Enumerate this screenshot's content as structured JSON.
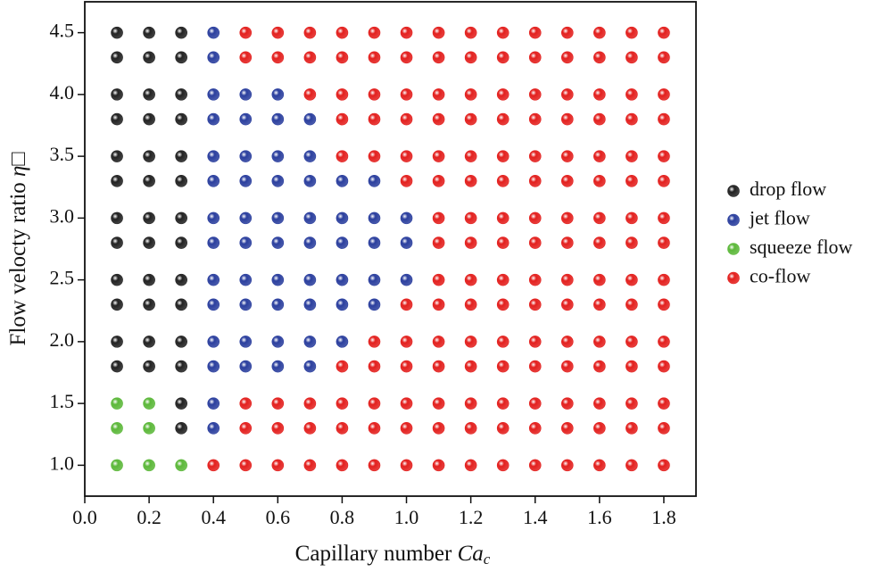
{
  "chart_data": {
    "type": "scatter",
    "xlabel": {
      "text": "Capillary number ",
      "symbol": "Ca",
      "subscript": "c"
    },
    "ylabel": {
      "text": "Flow velocty ratio ",
      "symbol": "η",
      "suffix": "□"
    },
    "xlim": [
      0,
      1.9
    ],
    "xticks": [
      {
        "value": 0,
        "label": "0.0"
      },
      0.2,
      0.4,
      0.6,
      0.8,
      {
        "value": 1,
        "label": "1.0"
      },
      1.2,
      1.4,
      1.6,
      1.8
    ],
    "ylim": [
      0.75,
      4.75
    ],
    "yticks": [
      {
        "value": 1,
        "label": "1.0"
      },
      1.5,
      {
        "value": 2,
        "label": "2.0"
      },
      2.5,
      {
        "value": 3,
        "label": "3.0"
      },
      3.5,
      {
        "value": 4,
        "label": "4.0"
      },
      4.5
    ],
    "legend": "right",
    "series": [
      {
        "name": "drop flow",
        "color": "#222222",
        "x": [
          0.1,
          0.1,
          0.1,
          0.1,
          0.1,
          0.1,
          0.1,
          0.1,
          0.1,
          0.1,
          0.1,
          0.1,
          0.2,
          0.2,
          0.2,
          0.2,
          0.2,
          0.2,
          0.2,
          0.2,
          0.2,
          0.2,
          0.2,
          0.2,
          0.3,
          0.3,
          0.3,
          0.3,
          0.3,
          0.3,
          0.3,
          0.3,
          0.3,
          0.3,
          0.3,
          0.3,
          0.3,
          0.3
        ],
        "values": [
          1.8,
          2.0,
          2.3,
          2.5,
          2.8,
          3.0,
          3.3,
          3.5,
          3.8,
          4.0,
          4.3,
          4.5,
          1.8,
          2.0,
          2.3,
          2.5,
          2.8,
          3.0,
          3.3,
          3.5,
          3.8,
          4.0,
          4.3,
          4.5,
          1.3,
          1.5,
          1.8,
          2.0,
          2.3,
          2.5,
          2.8,
          3.0,
          3.3,
          3.5,
          3.8,
          4.0,
          4.3,
          4.5
        ]
      },
      {
        "name": "jet flow",
        "color": "#2b3f9e",
        "x": [
          0.4,
          0.4,
          0.4,
          0.5,
          0.6,
          0.7,
          0.4,
          0.5,
          0.6,
          0.7,
          0.8,
          0.4,
          0.5,
          0.6,
          0.7,
          0.8,
          0.9,
          0.4,
          0.5,
          0.6,
          0.7,
          0.8,
          0.9,
          1.0,
          0.4,
          0.5,
          0.6,
          0.7,
          0.8,
          0.9,
          1.0,
          0.4,
          0.5,
          0.6,
          0.7,
          0.8,
          0.9,
          1.0,
          0.4,
          0.5,
          0.6,
          0.7,
          0.8,
          0.9,
          0.4,
          0.5,
          0.6,
          0.7,
          0.4,
          0.5,
          0.6,
          0.7,
          0.4,
          0.5,
          0.6,
          0.4,
          0.4
        ],
        "values": [
          1.3,
          1.5,
          1.8,
          1.8,
          1.8,
          1.8,
          2.0,
          2.0,
          2.0,
          2.0,
          2.0,
          2.3,
          2.3,
          2.3,
          2.3,
          2.3,
          2.3,
          2.5,
          2.5,
          2.5,
          2.5,
          2.5,
          2.5,
          2.5,
          2.8,
          2.8,
          2.8,
          2.8,
          2.8,
          2.8,
          2.8,
          3.0,
          3.0,
          3.0,
          3.0,
          3.0,
          3.0,
          3.0,
          3.3,
          3.3,
          3.3,
          3.3,
          3.3,
          3.3,
          3.5,
          3.5,
          3.5,
          3.5,
          3.8,
          3.8,
          3.8,
          3.8,
          4.0,
          4.0,
          4.0,
          4.3,
          4.5
        ]
      },
      {
        "name": "squeeze flow",
        "color": "#5cb83a",
        "x": [
          0.1,
          0.1,
          0.1,
          0.2,
          0.2,
          0.2,
          0.3
        ],
        "values": [
          1.0,
          1.3,
          1.5,
          1.0,
          1.3,
          1.5,
          1.0
        ]
      },
      {
        "name": "co-flow",
        "color": "#e3201e",
        "x": [
          0.4,
          0.5,
          0.6,
          0.7,
          0.8,
          0.9,
          1.0,
          1.1,
          1.2,
          1.3,
          1.4,
          1.5,
          1.6,
          1.7,
          1.8,
          0.5,
          0.6,
          0.7,
          0.8,
          0.9,
          1.0,
          1.1,
          1.2,
          1.3,
          1.4,
          1.5,
          1.6,
          1.7,
          1.8,
          0.5,
          0.6,
          0.7,
          0.8,
          0.9,
          1.0,
          1.1,
          1.2,
          1.3,
          1.4,
          1.5,
          1.6,
          1.7,
          1.8,
          0.8,
          0.9,
          1.0,
          1.1,
          1.2,
          1.3,
          1.4,
          1.5,
          1.6,
          1.7,
          1.8,
          0.9,
          1.0,
          1.1,
          1.2,
          1.3,
          1.4,
          1.5,
          1.6,
          1.7,
          1.8,
          1.0,
          1.1,
          1.2,
          1.3,
          1.4,
          1.5,
          1.6,
          1.7,
          1.8,
          1.1,
          1.2,
          1.3,
          1.4,
          1.5,
          1.6,
          1.7,
          1.8,
          1.1,
          1.2,
          1.3,
          1.4,
          1.5,
          1.6,
          1.7,
          1.8,
          1.1,
          1.2,
          1.3,
          1.4,
          1.5,
          1.6,
          1.7,
          1.8,
          1.0,
          1.1,
          1.2,
          1.3,
          1.4,
          1.5,
          1.6,
          1.7,
          1.8,
          0.8,
          0.9,
          1.0,
          1.1,
          1.2,
          1.3,
          1.4,
          1.5,
          1.6,
          1.7,
          1.8,
          0.8,
          0.9,
          1.0,
          1.1,
          1.2,
          1.3,
          1.4,
          1.5,
          1.6,
          1.7,
          1.8,
          0.7,
          0.8,
          0.9,
          1.0,
          1.1,
          1.2,
          1.3,
          1.4,
          1.5,
          1.6,
          1.7,
          1.8,
          0.5,
          0.6,
          0.7,
          0.8,
          0.9,
          1.0,
          1.1,
          1.2,
          1.3,
          1.4,
          1.5,
          1.6,
          1.7,
          1.8,
          0.5,
          0.6,
          0.7,
          0.8,
          0.9,
          1.0,
          1.1,
          1.2,
          1.3,
          1.4,
          1.5,
          1.6,
          1.7,
          1.8
        ],
        "values": [
          1.0,
          1.0,
          1.0,
          1.0,
          1.0,
          1.0,
          1.0,
          1.0,
          1.0,
          1.0,
          1.0,
          1.0,
          1.0,
          1.0,
          1.0,
          1.3,
          1.3,
          1.3,
          1.3,
          1.3,
          1.3,
          1.3,
          1.3,
          1.3,
          1.3,
          1.3,
          1.3,
          1.3,
          1.3,
          1.5,
          1.5,
          1.5,
          1.5,
          1.5,
          1.5,
          1.5,
          1.5,
          1.5,
          1.5,
          1.5,
          1.5,
          1.5,
          1.5,
          1.8,
          1.8,
          1.8,
          1.8,
          1.8,
          1.8,
          1.8,
          1.8,
          1.8,
          1.8,
          1.8,
          2.0,
          2.0,
          2.0,
          2.0,
          2.0,
          2.0,
          2.0,
          2.0,
          2.0,
          2.0,
          2.3,
          2.3,
          2.3,
          2.3,
          2.3,
          2.3,
          2.3,
          2.3,
          2.3,
          2.5,
          2.5,
          2.5,
          2.5,
          2.5,
          2.5,
          2.5,
          2.5,
          2.8,
          2.8,
          2.8,
          2.8,
          2.8,
          2.8,
          2.8,
          2.8,
          3.0,
          3.0,
          3.0,
          3.0,
          3.0,
          3.0,
          3.0,
          3.0,
          3.3,
          3.3,
          3.3,
          3.3,
          3.3,
          3.3,
          3.3,
          3.3,
          3.3,
          3.5,
          3.5,
          3.5,
          3.5,
          3.5,
          3.5,
          3.5,
          3.5,
          3.5,
          3.5,
          3.5,
          3.8,
          3.8,
          3.8,
          3.8,
          3.8,
          3.8,
          3.8,
          3.8,
          3.8,
          3.8,
          3.8,
          4.0,
          4.0,
          4.0,
          4.0,
          4.0,
          4.0,
          4.0,
          4.0,
          4.0,
          4.0,
          4.0,
          4.0,
          4.3,
          4.3,
          4.3,
          4.3,
          4.3,
          4.3,
          4.3,
          4.3,
          4.3,
          4.3,
          4.3,
          4.3,
          4.3,
          4.3,
          4.5,
          4.5,
          4.5,
          4.5,
          4.5,
          4.5,
          4.5,
          4.5,
          4.5,
          4.5,
          4.5,
          4.5,
          4.5,
          4.5
        ]
      }
    ]
  }
}
